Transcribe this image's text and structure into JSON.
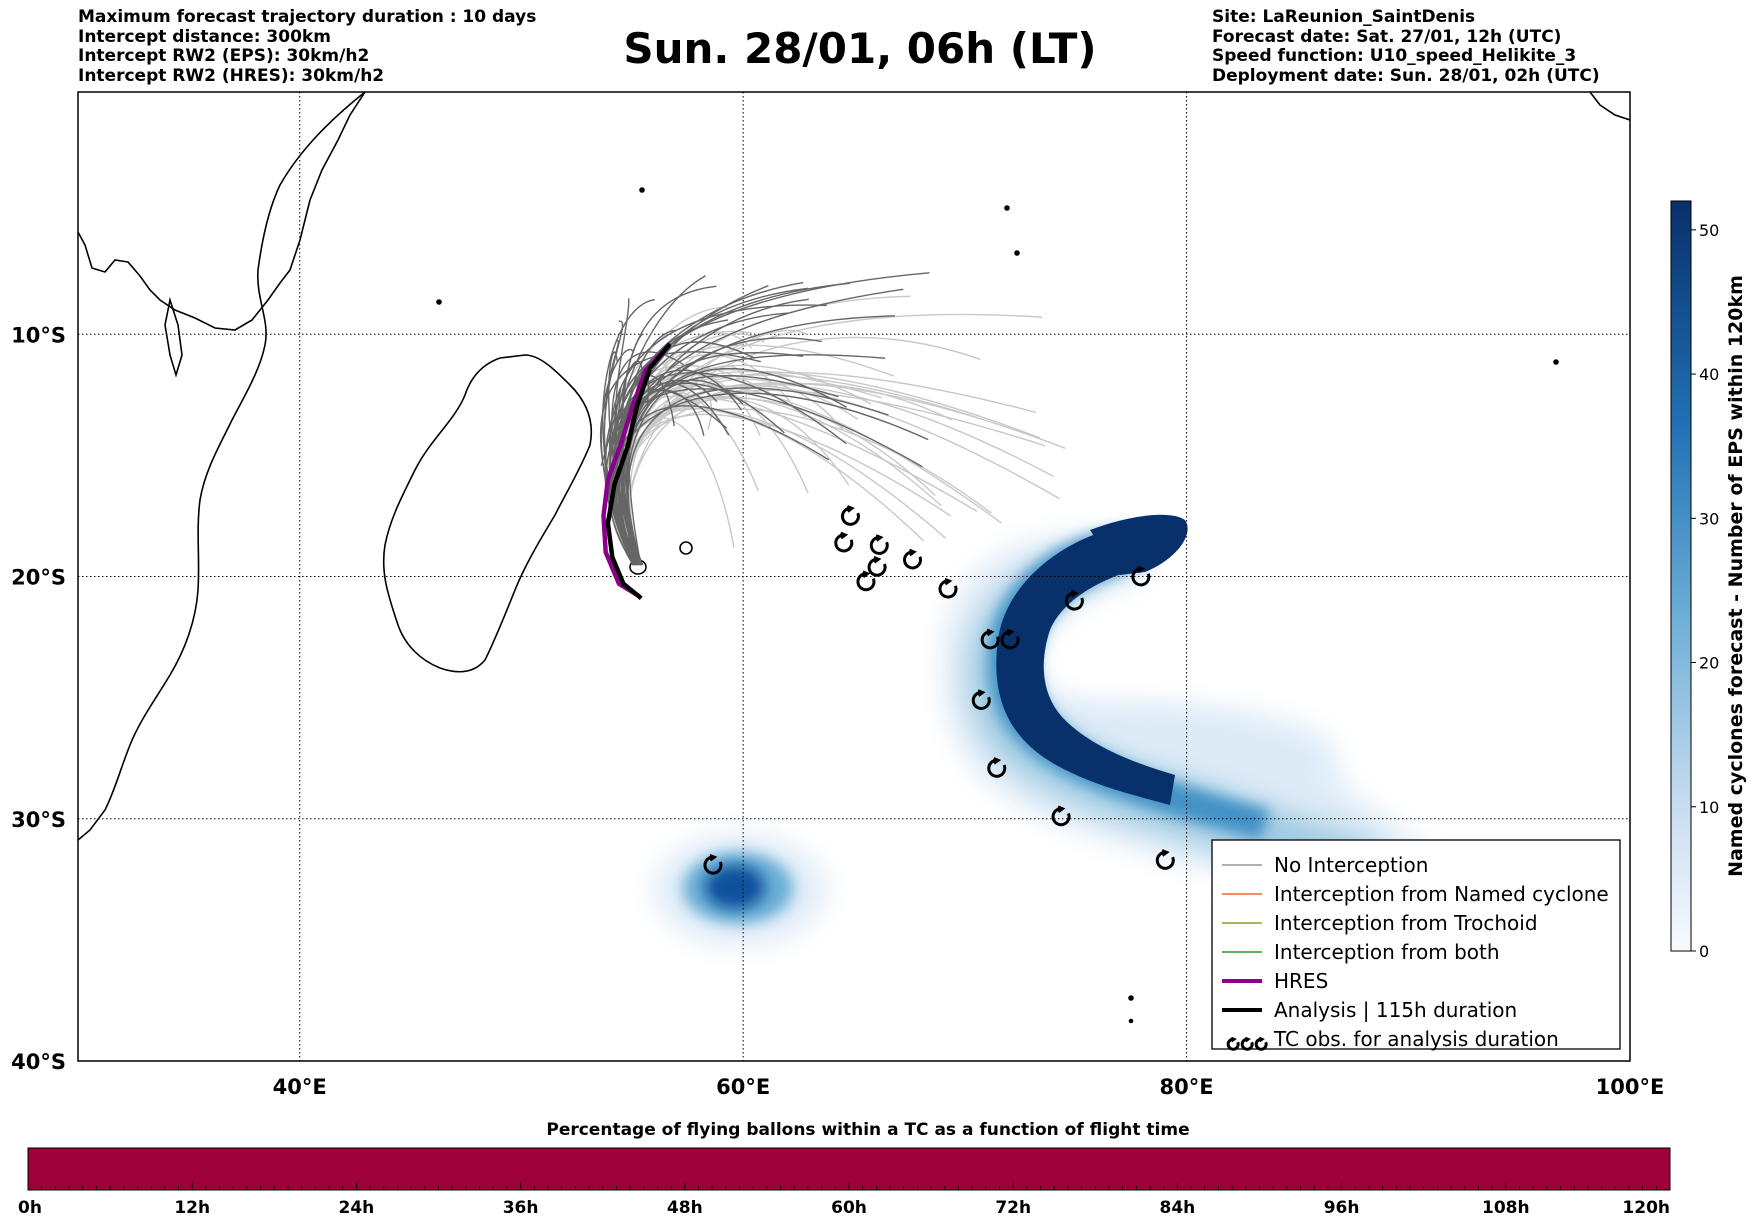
{
  "header": {
    "left": [
      "Maximum forecast trajectory duration : 10 days",
      "Intercept distance: 300km",
      "Intercept RW2 (EPS):  30km/h2",
      "Intercept RW2 (HRES): 30km/h2"
    ],
    "title": "Sun. 28/01, 06h (LT)",
    "right": [
      "Site: LaReunion_SaintDenis",
      "Forecast date: Sat. 27/01, 12h (UTC)",
      "Speed function: U10_speed_Helikite_3",
      "Deployment date: Sun. 28/01, 02h (UTC)"
    ]
  },
  "map": {
    "lon_range": [
      30,
      100
    ],
    "lat_range": [
      -40,
      0
    ],
    "x_ticks": [
      {
        "lon": 40,
        "label": "40°E"
      },
      {
        "lon": 60,
        "label": "60°E"
      },
      {
        "lon": 80,
        "label": "80°E"
      },
      {
        "lon": 100,
        "label": "100°E"
      }
    ],
    "y_ticks": [
      {
        "lat": -10,
        "label": "10°S"
      },
      {
        "lat": -20,
        "label": "20°S"
      },
      {
        "lat": -30,
        "label": "30°S"
      },
      {
        "lat": -40,
        "label": "40°S"
      }
    ],
    "grid": true
  },
  "legend": {
    "placement": "lower-right",
    "items": [
      {
        "label": "No Interception",
        "color": "#808080",
        "kind": "line"
      },
      {
        "label": "Interception from Named cyclone",
        "color": "#ff4500",
        "kind": "line"
      },
      {
        "label": "Interception from Trochoid",
        "color": "#808000",
        "kind": "line"
      },
      {
        "label": "Interception from both",
        "color": "#008000",
        "kind": "line"
      },
      {
        "label": "HRES",
        "color": "#8b008b",
        "kind": "thick"
      },
      {
        "label": "Analysis | 115h duration",
        "color": "#000000",
        "kind": "thick"
      },
      {
        "label": "TC obs. for analysis duration",
        "color": "#000000",
        "kind": "symbol"
      }
    ]
  },
  "colorbar": {
    "title": "Named cyclones forecast - Number of EPS within 120km",
    "range": [
      0,
      52
    ],
    "ticks": [
      "0",
      "10",
      "20",
      "30",
      "40",
      "50"
    ],
    "tick_values": [
      0,
      10,
      20,
      30,
      40,
      50
    ],
    "color_low": "#deebf7",
    "color_high": "#08306b"
  },
  "timebar": {
    "title": "Percentage of flying ballons within a TC as a function of flight time",
    "ticks": [
      "0h",
      "12h",
      "24h",
      "36h",
      "48h",
      "60h",
      "72h",
      "84h",
      "96h",
      "108h",
      "120h"
    ],
    "tick_hours": [
      0,
      12,
      24,
      36,
      48,
      60,
      72,
      84,
      96,
      108,
      120
    ],
    "fill_color": "#9e003a"
  },
  "colors": {
    "eps_no_interception": "#666666",
    "eps_long": "#c8c8c8",
    "hres": "#8b008b",
    "analysis": "#000000"
  },
  "tc_obs": [
    {
      "lon": 64.6,
      "lat": -18.6
    },
    {
      "lon": 64.9,
      "lat": -17.5
    },
    {
      "lon": 66.2,
      "lat": -18.7
    },
    {
      "lon": 66.1,
      "lat": -19.6
    },
    {
      "lon": 65.6,
      "lat": -20.2
    },
    {
      "lon": 67.7,
      "lat": -19.3
    },
    {
      "lon": 69.3,
      "lat": -20.5
    },
    {
      "lon": 78.0,
      "lat": -20.0
    },
    {
      "lon": 75.0,
      "lat": -21.0
    },
    {
      "lon": 71.2,
      "lat": -22.6
    },
    {
      "lon": 72.1,
      "lat": -22.6
    },
    {
      "lon": 70.8,
      "lat": -25.1
    },
    {
      "lon": 71.5,
      "lat": -27.9
    },
    {
      "lon": 74.4,
      "lat": -29.9
    },
    {
      "lon": 79.1,
      "lat": -31.7
    },
    {
      "lon": 58.7,
      "lat": -31.9
    }
  ],
  "hres_track": [
    [
      56.7,
      -10.4
    ],
    [
      55.6,
      -11.5
    ],
    [
      55.0,
      -13.0
    ],
    [
      54.5,
      -14.5
    ],
    [
      53.9,
      -16.0
    ],
    [
      53.7,
      -17.5
    ],
    [
      53.8,
      -19.0
    ],
    [
      54.4,
      -20.3
    ],
    [
      55.3,
      -20.8
    ]
  ],
  "analysis_track": [
    [
      56.7,
      -10.4
    ],
    [
      55.8,
      -11.4
    ],
    [
      55.2,
      -13.0
    ],
    [
      54.8,
      -14.6
    ],
    [
      54.2,
      -16.2
    ],
    [
      53.9,
      -17.8
    ],
    [
      54.1,
      -19.2
    ],
    [
      54.6,
      -20.3
    ],
    [
      55.4,
      -20.9
    ]
  ]
}
